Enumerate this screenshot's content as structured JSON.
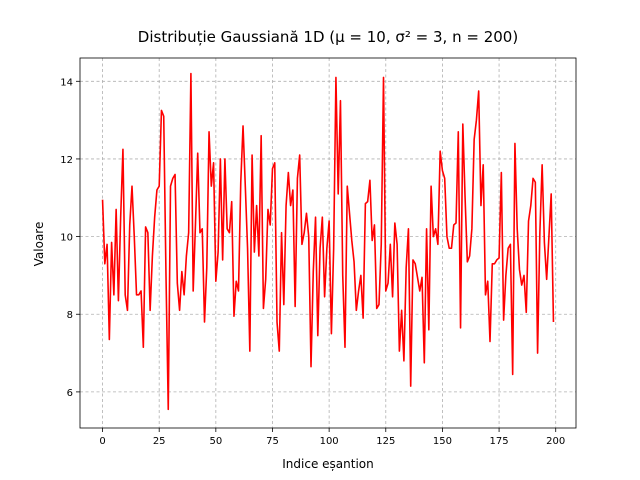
{
  "chart_data": {
    "type": "line",
    "title": "Distribuție Gaussiană 1D (μ = 10, σ² = 3, n = 200)",
    "x_label": "Indice eșantion",
    "y_label": "Valoare",
    "x": [
      0,
      1,
      2,
      3,
      4,
      5,
      6,
      7,
      8,
      9,
      10,
      11,
      12,
      13,
      14,
      15,
      16,
      17,
      18,
      19,
      20,
      21,
      22,
      23,
      24,
      25,
      26,
      27,
      28,
      29,
      30,
      31,
      32,
      33,
      34,
      35,
      36,
      37,
      38,
      39,
      40,
      41,
      42,
      43,
      44,
      45,
      46,
      47,
      48,
      49,
      50,
      51,
      52,
      53,
      54,
      55,
      56,
      57,
      58,
      59,
      60,
      61,
      62,
      63,
      64,
      65,
      66,
      67,
      68,
      69,
      70,
      71,
      72,
      73,
      74,
      75,
      76,
      77,
      78,
      79,
      80,
      81,
      82,
      83,
      84,
      85,
      86,
      87,
      88,
      89,
      90,
      91,
      92,
      93,
      94,
      95,
      96,
      97,
      98,
      99,
      100,
      101,
      102,
      103,
      104,
      105,
      106,
      107,
      108,
      109,
      110,
      111,
      112,
      113,
      114,
      115,
      116,
      117,
      118,
      119,
      120,
      121,
      122,
      123,
      124,
      125,
      126,
      127,
      128,
      129,
      130,
      131,
      132,
      133,
      134,
      135,
      136,
      137,
      138,
      139,
      140,
      141,
      142,
      143,
      144,
      145,
      146,
      147,
      148,
      149,
      150,
      151,
      152,
      153,
      154,
      155,
      156,
      157,
      158,
      159,
      160,
      161,
      162,
      163,
      164,
      165,
      166,
      167,
      168,
      169,
      170,
      171,
      172,
      173,
      174,
      175,
      176,
      177,
      178,
      179,
      180,
      181,
      182,
      183,
      184,
      185,
      186,
      187,
      188,
      189,
      190,
      191,
      192,
      193,
      194,
      195,
      196,
      197,
      198,
      199
    ],
    "series": [
      {
        "color": "#ff0000",
        "values": [
          10.95,
          9.3,
          9.8,
          7.35,
          9.85,
          8.5,
          10.7,
          8.35,
          10.5,
          12.25,
          8.5,
          8.1,
          10.3,
          11.3,
          10.0,
          8.5,
          8.5,
          8.6,
          7.15,
          10.25,
          10.1,
          8.1,
          9.5,
          10.5,
          11.2,
          11.3,
          13.25,
          13.1,
          9.0,
          5.55,
          11.3,
          11.5,
          11.6,
          8.8,
          8.1,
          9.1,
          8.5,
          9.5,
          10.1,
          14.2,
          8.6,
          10.3,
          12.15,
          10.1,
          10.2,
          7.8,
          9.2,
          12.7,
          11.3,
          11.9,
          8.85,
          9.6,
          12.0,
          9.4,
          12.0,
          10.2,
          10.1,
          10.9,
          7.95,
          8.85,
          8.6,
          11.4,
          12.85,
          11.3,
          9.7,
          7.05,
          12.1,
          9.6,
          10.8,
          9.5,
          12.6,
          8.15,
          8.9,
          10.7,
          10.3,
          11.75,
          11.9,
          7.8,
          7.05,
          10.1,
          8.25,
          10.8,
          11.65,
          10.8,
          11.2,
          8.2,
          11.5,
          12.1,
          9.8,
          10.1,
          10.6,
          10.0,
          6.65,
          9.1,
          10.5,
          7.45,
          9.7,
          10.5,
          8.45,
          9.7,
          10.4,
          7.5,
          9.7,
          14.1,
          11.1,
          13.5,
          9.0,
          7.15,
          11.3,
          10.6,
          9.9,
          9.35,
          8.1,
          8.6,
          9.0,
          7.9,
          10.85,
          10.9,
          11.45,
          9.9,
          10.3,
          8.15,
          8.25,
          9.8,
          14.1,
          8.6,
          8.8,
          9.8,
          8.45,
          10.35,
          9.8,
          7.05,
          8.1,
          6.8,
          9.2,
          10.2,
          6.15,
          9.4,
          9.3,
          8.95,
          8.6,
          8.95,
          6.75,
          10.2,
          7.6,
          11.3,
          10.0,
          10.2,
          9.8,
          12.2,
          11.7,
          11.5,
          10.0,
          9.7,
          9.7,
          10.3,
          10.35,
          12.7,
          7.65,
          12.9,
          11.0,
          9.35,
          9.5,
          10.2,
          12.5,
          13.0,
          13.75,
          10.8,
          11.85,
          8.5,
          8.85,
          7.3,
          9.3,
          9.3,
          9.4,
          9.45,
          11.65,
          7.85,
          9.0,
          9.7,
          9.8,
          6.45,
          12.4,
          10.2,
          9.15,
          8.75,
          9.0,
          8.05,
          10.4,
          10.8,
          11.5,
          11.4,
          7.0,
          10.1,
          11.85,
          9.85,
          8.9,
          10.0,
          11.1,
          7.8
        ]
      }
    ],
    "xlim": [
      -9.95,
      208.95
    ],
    "ylim": [
      5.07,
      14.6
    ],
    "xticks": [
      0,
      25,
      50,
      75,
      100,
      125,
      150,
      175,
      200
    ],
    "yticks": [
      6,
      8,
      10,
      12,
      14
    ],
    "grid": true
  }
}
